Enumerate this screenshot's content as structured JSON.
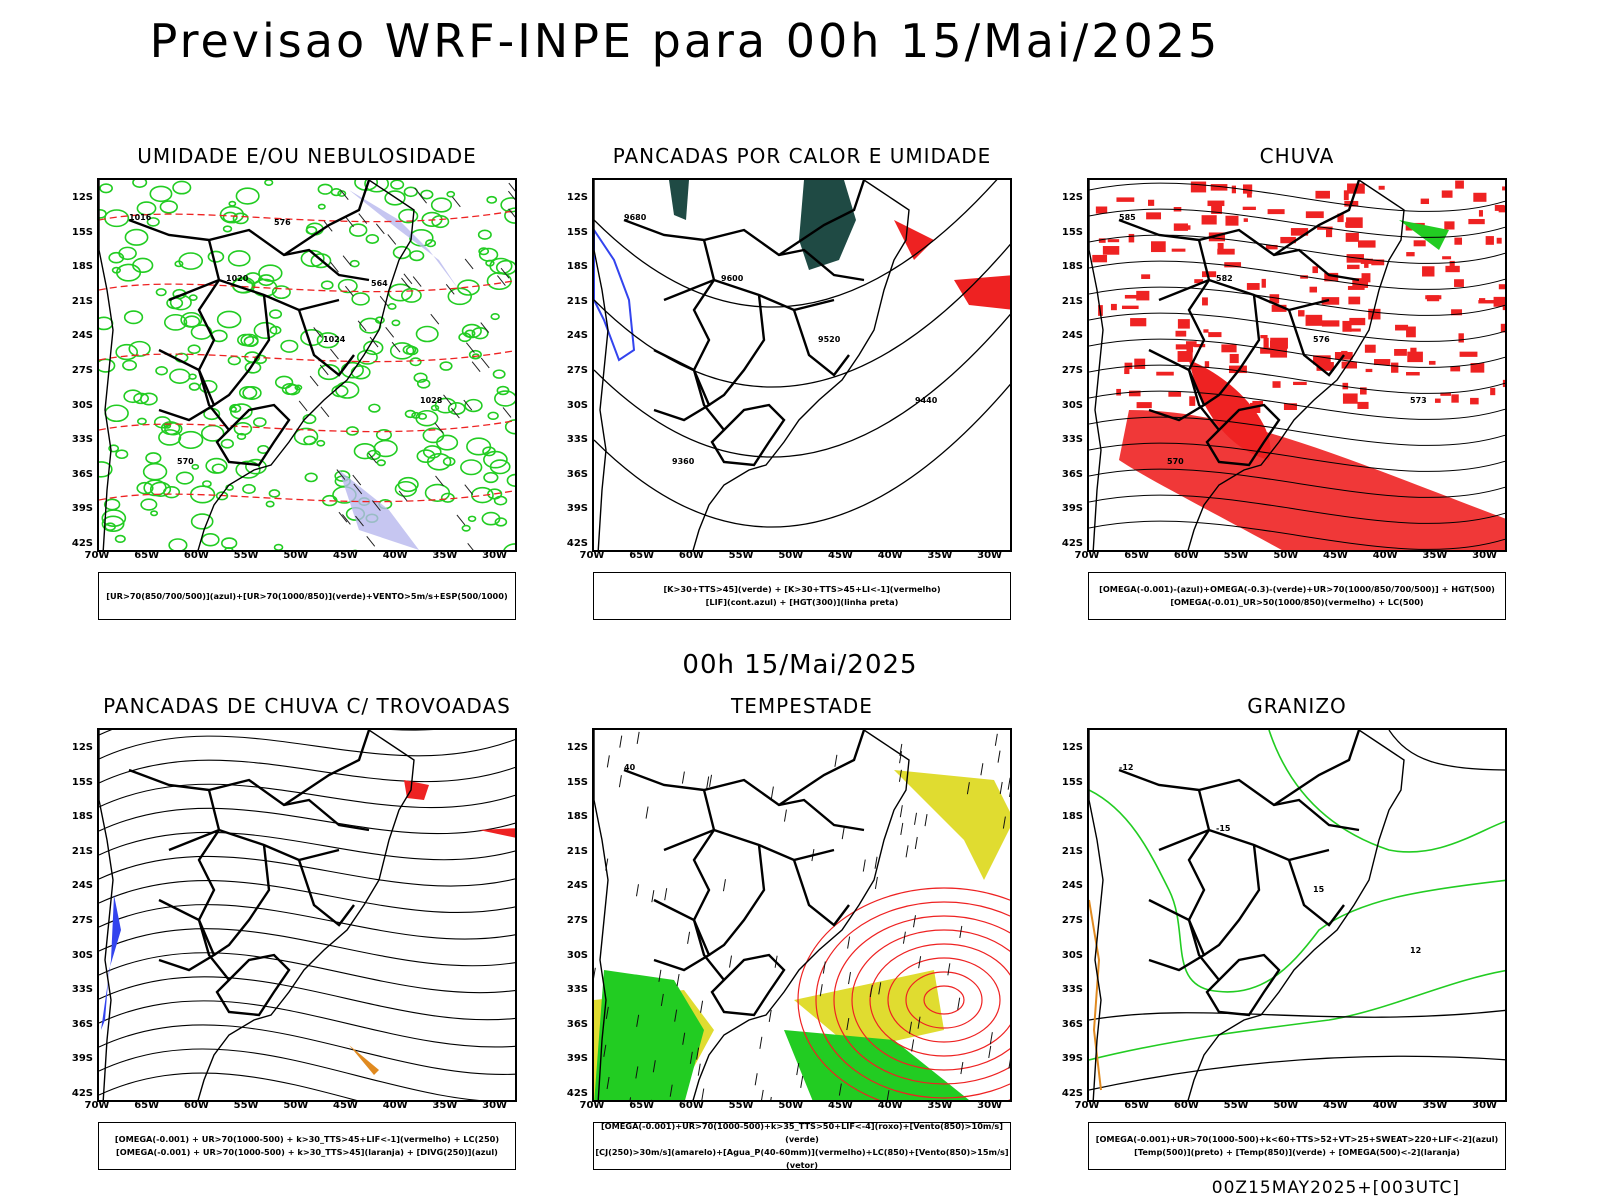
{
  "title": "Previsao WRF-INPE  para 00h 15/Mai/2025",
  "mid_title": "00h 15/Mai/2025",
  "footer": "00Z15MAY2025+[003UTC]",
  "lat_labels": [
    "12S",
    "15S",
    "18S",
    "21S",
    "24S",
    "27S",
    "30S",
    "33S",
    "36S",
    "39S",
    "42S"
  ],
  "lon_labels": [
    "70W",
    "65W",
    "60W",
    "55W",
    "50W",
    "45W",
    "40W",
    "35W",
    "30W"
  ],
  "colors": {
    "green": "#22cc22",
    "red": "#ee2222",
    "blue": "#3344ee",
    "lavender": "#b8b8ee",
    "yellow": "#e0dc30",
    "teal": "#1f4a44",
    "orange": "#e08a20"
  },
  "panels": [
    {
      "title": "UMIDADE E/OU NEBULOSIDADE",
      "legend": [
        "[UR>70(850/700/500)](azul)+[UR>70(1000/850)](verde)+VENTO>5m/s+ESP(500/1000)"
      ],
      "contour_labels": [
        "1016",
        "1020",
        "1024",
        "1028",
        "570",
        "576",
        "564"
      ]
    },
    {
      "title": "PANCADAS POR CALOR E UMIDADE",
      "legend": [
        "[K>30+TTS>45](verde) + [K>30+TTS>45+LI<-1](vermelho)",
        "[LIF](cont.azul) + [HGT(300)](linha preta)"
      ],
      "contour_labels": [
        "9680",
        "9600",
        "9520",
        "9440",
        "9360"
      ]
    },
    {
      "title": "CHUVA",
      "legend": [
        "[OMEGA(-0.001)-(azul)+OMEGA(-0.3)-(verde)+UR>70(1000/850/700/500)] + HGT(500)",
        "[OMEGA(-0.01)_UR>50(1000/850)(vermelho) + LC(500)"
      ],
      "contour_labels": [
        "585",
        "582",
        "576",
        "573",
        "570"
      ]
    },
    {
      "title": "PANCADAS DE CHUVA C/ TROVOADAS",
      "legend": [
        "[OMEGA(-0.001) + UR>70(1000-500) + k>30_TTS>45+LIF<-1](vermelho) + LC(250)",
        "[OMEGA(-0.001) + UR>70(1000-500) + k>30_TTS>45](laranja) + [DIVG(250)](azul)"
      ],
      "contour_labels": []
    },
    {
      "title": "TEMPESTADE",
      "legend": [
        "[OMEGA(-0.001)+UR>70(1000-500)+k>35_TTS>50+LIF<-4](roxo)+[Vento(850)>10m/s](verde)",
        "[CJ(250)>30m/s](amarelo)+[Agua_P(40-60mm)](vermelho)+LC(850)+[Vento(850)>15m/s](vetor)"
      ],
      "contour_labels": [
        "40"
      ]
    },
    {
      "title": "GRANIZO",
      "legend": [
        "[OMEGA(-0.001)+UR>70(1000-500)+k<60+TTS>52+VT>25+SWEAT>220+LIF<-2](azul)",
        "[Temp(500)](preto) + [Temp(850)](verde) + [OMEGA(500)<-2](laranja)"
      ],
      "contour_labels": [
        "-12",
        "-15",
        "15",
        "12"
      ]
    }
  ]
}
